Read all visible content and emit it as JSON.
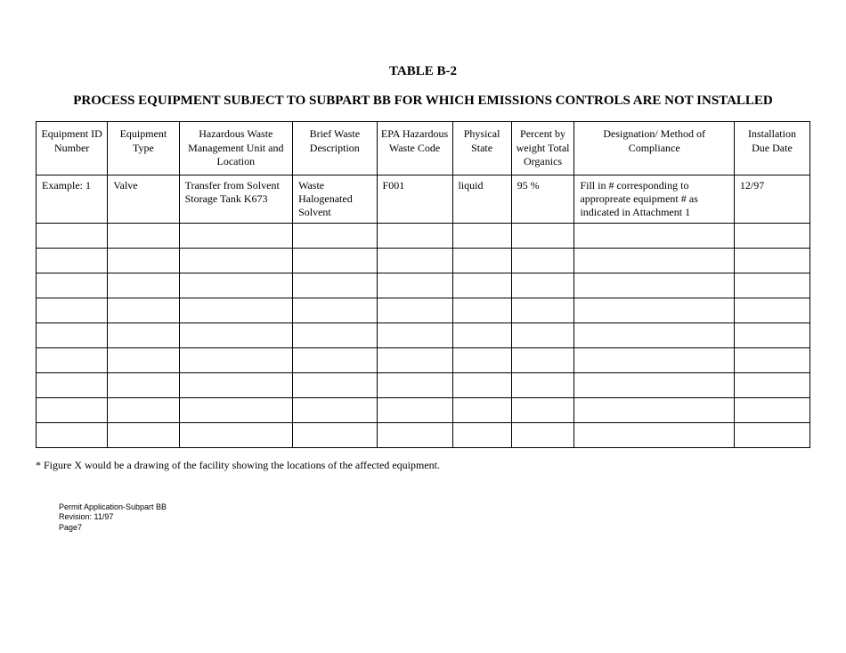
{
  "title": "TABLE B-2",
  "subtitle": "PROCESS EQUIPMENT SUBJECT TO SUBPART BB FOR WHICH EMISSIONS CONTROLS ARE NOT INSTALLED",
  "columns": [
    "Equipment ID Number",
    "Equipment Type",
    "Hazardous Waste Management Unit and Location",
    "Brief Waste Description",
    "EPA Hazardous Waste Code",
    "Physical State",
    "Percent by weight Total Organics",
    "Designation/ Method of Compliance",
    "Installation Due Date"
  ],
  "example": {
    "id": "Example: 1",
    "type": "Valve",
    "mgmt": "Transfer from Solvent Storage Tank K673",
    "desc": "Waste Halogenated Solvent",
    "epa": "F001",
    "phys": "liquid",
    "pct": "95 %",
    "dmc": "Fill in # corresponding to appropreate equipment # as indicated in Attachment 1",
    "due": "12/97"
  },
  "empty_row_count": 9,
  "footnote": "* Figure X would be a drawing of the facility showing the locations of the affected equipment.",
  "footer": {
    "line1": "Permit Application-Subpart BB",
    "line2": "Revision: 11/97",
    "line3": "Page7"
  }
}
